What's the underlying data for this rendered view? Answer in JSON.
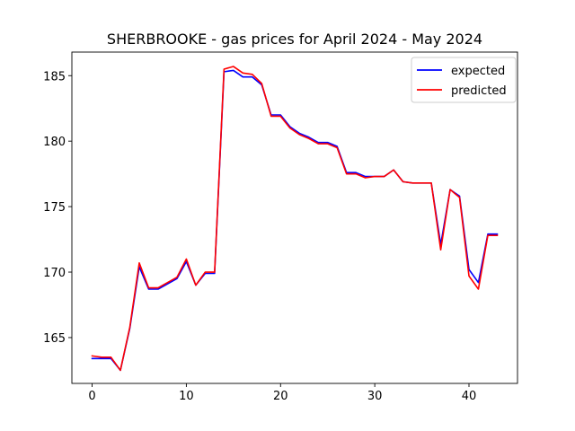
{
  "chart_data": {
    "type": "line",
    "title": "SHERBROOKE - gas prices for April 2024 - May 2024",
    "xlabel": "",
    "ylabel": "",
    "xlim": [
      -2.15,
      45.15
    ],
    "ylim": [
      161.5,
      186.8
    ],
    "x_ticks": [
      0,
      10,
      20,
      30,
      40
    ],
    "y_ticks": [
      165,
      170,
      175,
      180,
      185
    ],
    "grid": false,
    "legend_position": "top-right",
    "x": [
      0,
      1,
      2,
      3,
      4,
      5,
      6,
      7,
      8,
      9,
      10,
      11,
      12,
      13,
      14,
      15,
      16,
      17,
      18,
      19,
      20,
      21,
      22,
      23,
      24,
      25,
      26,
      27,
      28,
      29,
      30,
      31,
      32,
      33,
      34,
      35,
      36,
      37,
      38,
      39,
      40,
      41,
      42,
      43
    ],
    "series": [
      {
        "name": "expected",
        "color": "#0000ff",
        "values": [
          163.4,
          163.4,
          163.4,
          162.5,
          165.7,
          170.4,
          168.7,
          168.7,
          169.1,
          169.5,
          170.8,
          169.0,
          169.9,
          169.9,
          185.3,
          185.4,
          184.9,
          184.9,
          184.3,
          182.0,
          182.0,
          181.1,
          180.6,
          180.3,
          179.9,
          179.9,
          179.6,
          177.6,
          177.6,
          177.3,
          177.3,
          177.3,
          177.8,
          176.9,
          176.8,
          176.8,
          176.8,
          172.1,
          176.3,
          175.8,
          170.2,
          169.2,
          172.9,
          172.9
        ]
      },
      {
        "name": "predicted",
        "color": "#ff0000",
        "values": [
          163.6,
          163.5,
          163.5,
          162.5,
          165.8,
          170.7,
          168.8,
          168.8,
          169.2,
          169.6,
          171.0,
          169.0,
          170.0,
          170.0,
          185.5,
          185.7,
          185.2,
          185.1,
          184.4,
          181.9,
          181.9,
          181.0,
          180.5,
          180.2,
          179.8,
          179.8,
          179.5,
          177.5,
          177.5,
          177.2,
          177.3,
          177.3,
          177.8,
          176.9,
          176.8,
          176.8,
          176.8,
          171.7,
          176.3,
          175.7,
          169.7,
          168.7,
          172.8,
          172.8
        ]
      }
    ]
  }
}
